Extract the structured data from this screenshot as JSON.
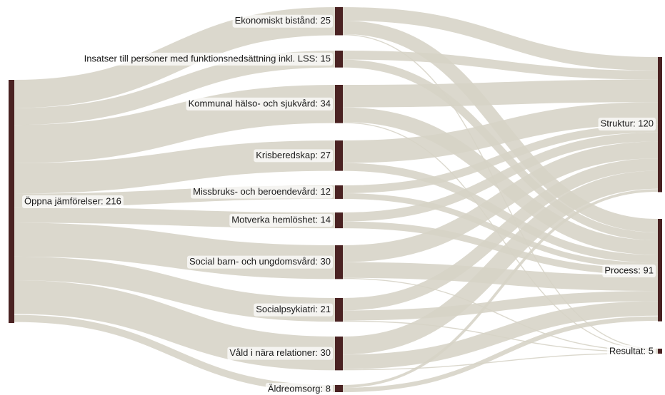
{
  "chart_data": {
    "type": "sankey",
    "title": "",
    "nodes": [
      {
        "id": "src",
        "label": "Öppna jämförelser: 216",
        "value": 216,
        "column": 0
      },
      {
        "id": "eko",
        "label": "Ekonomiskt bistånd: 25",
        "value": 25,
        "column": 1
      },
      {
        "id": "lss",
        "label": "Insatser till personer med funktionsnedsättning inkl. LSS: 15",
        "value": 15,
        "column": 1
      },
      {
        "id": "hs",
        "label": "Kommunal hälso- och sjukvård: 34",
        "value": 34,
        "column": 1
      },
      {
        "id": "kris",
        "label": "Krisberedskap: 27",
        "value": 27,
        "column": 1
      },
      {
        "id": "miss",
        "label": "Missbruks- och beroendevård: 12",
        "value": 12,
        "column": 1
      },
      {
        "id": "hem",
        "label": "Motverka hemlöshet: 14",
        "value": 14,
        "column": 1
      },
      {
        "id": "barn",
        "label": "Social barn- och ungdomsvård: 30",
        "value": 30,
        "column": 1
      },
      {
        "id": "psyk",
        "label": "Socialpsykiatri: 21",
        "value": 21,
        "column": 1
      },
      {
        "id": "vald",
        "label": "Våld i nära relationer: 30",
        "value": 30,
        "column": 1
      },
      {
        "id": "aldr",
        "label": "Äldreomsorg: 8",
        "value": 8,
        "column": 1
      },
      {
        "id": "str",
        "label": "Struktur: 120",
        "value": 120,
        "column": 2
      },
      {
        "id": "pro",
        "label": "Process: 91",
        "value": 91,
        "column": 2
      },
      {
        "id": "res",
        "label": "Resultat: 5",
        "value": 5,
        "column": 2
      }
    ],
    "links": [
      {
        "source": "src",
        "target": "eko",
        "value": 25
      },
      {
        "source": "src",
        "target": "lss",
        "value": 15
      },
      {
        "source": "src",
        "target": "hs",
        "value": 34
      },
      {
        "source": "src",
        "target": "kris",
        "value": 27
      },
      {
        "source": "src",
        "target": "miss",
        "value": 12
      },
      {
        "source": "src",
        "target": "hem",
        "value": 14
      },
      {
        "source": "src",
        "target": "barn",
        "value": 30
      },
      {
        "source": "src",
        "target": "psyk",
        "value": 21
      },
      {
        "source": "src",
        "target": "vald",
        "value": 30
      },
      {
        "source": "src",
        "target": "aldr",
        "value": 8
      },
      {
        "source": "eko",
        "target": "str",
        "value": 12
      },
      {
        "source": "eko",
        "target": "pro",
        "value": 12
      },
      {
        "source": "eko",
        "target": "res",
        "value": 1
      },
      {
        "source": "lss",
        "target": "str",
        "value": 8
      },
      {
        "source": "lss",
        "target": "pro",
        "value": 7
      },
      {
        "source": "hs",
        "target": "str",
        "value": 20
      },
      {
        "source": "hs",
        "target": "pro",
        "value": 13
      },
      {
        "source": "hs",
        "target": "res",
        "value": 1
      },
      {
        "source": "kris",
        "target": "str",
        "value": 20
      },
      {
        "source": "kris",
        "target": "pro",
        "value": 7
      },
      {
        "source": "miss",
        "target": "str",
        "value": 7
      },
      {
        "source": "miss",
        "target": "pro",
        "value": 5
      },
      {
        "source": "hem",
        "target": "str",
        "value": 8
      },
      {
        "source": "hem",
        "target": "pro",
        "value": 6
      },
      {
        "source": "barn",
        "target": "str",
        "value": 15
      },
      {
        "source": "barn",
        "target": "pro",
        "value": 14
      },
      {
        "source": "barn",
        "target": "res",
        "value": 1
      },
      {
        "source": "psyk",
        "target": "str",
        "value": 11
      },
      {
        "source": "psyk",
        "target": "pro",
        "value": 9
      },
      {
        "source": "psyk",
        "target": "res",
        "value": 1
      },
      {
        "source": "vald",
        "target": "str",
        "value": 16
      },
      {
        "source": "vald",
        "target": "pro",
        "value": 13
      },
      {
        "source": "vald",
        "target": "res",
        "value": 1
      },
      {
        "source": "aldr",
        "target": "str",
        "value": 3
      },
      {
        "source": "aldr",
        "target": "pro",
        "value": 5
      }
    ],
    "colors": {
      "node": "#4a2222",
      "link": "#d6d3c6"
    }
  }
}
